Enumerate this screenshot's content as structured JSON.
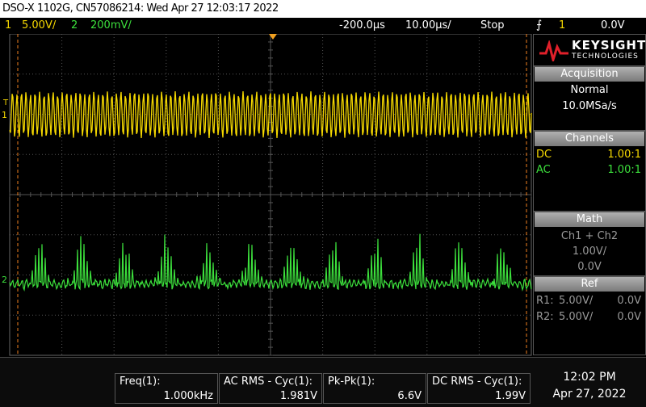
{
  "title_bar": {
    "text": "DSO-X 1102G, CN57086214: Wed Apr 27 12:03:17 2022"
  },
  "header": {
    "ch1_num": "1",
    "ch1_scale": "5.00V/",
    "ch2_num": "2",
    "ch2_scale": "200mV/",
    "time_offset": "-200.0µs",
    "time_scale": "10.00µs/",
    "run_state": "Stop",
    "trigger_source": "1",
    "trigger_level": "0.0V"
  },
  "markers": {
    "trigger": "T",
    "ch1": "1",
    "ch2": "2"
  },
  "panel": {
    "brand": "KEYSIGHT",
    "brand_sub": "TECHNOLOGIES",
    "acquisition": {
      "title": "Acquisition",
      "mode": "Normal",
      "rate": "10.0MSa/s"
    },
    "channels": {
      "title": "Channels",
      "rows": [
        [
          "DC",
          "1.00:1"
        ],
        [
          "AC",
          "1.00:1"
        ]
      ]
    },
    "math": {
      "title": "Math",
      "func": "Ch1 + Ch2",
      "scale": "1.00V/",
      "offset": "0.0V"
    },
    "ref": {
      "title": "Ref",
      "rows": [
        [
          "R1:",
          "5.00V/",
          "0.0V"
        ],
        [
          "R2:",
          "5.00V/",
          "0.0V"
        ]
      ]
    }
  },
  "measurements": [
    {
      "label": "Freq(1):",
      "value": "1.000kHz"
    },
    {
      "label": "AC RMS - Cyc(1):",
      "value": "1.981V"
    },
    {
      "label": "Pk-Pk(1):",
      "value": "6.6V"
    },
    {
      "label": "DC RMS - Cyc(1):",
      "value": "1.99V"
    }
  ],
  "clock": {
    "time": "12:02 PM",
    "date": "Apr 27, 2022"
  }
}
